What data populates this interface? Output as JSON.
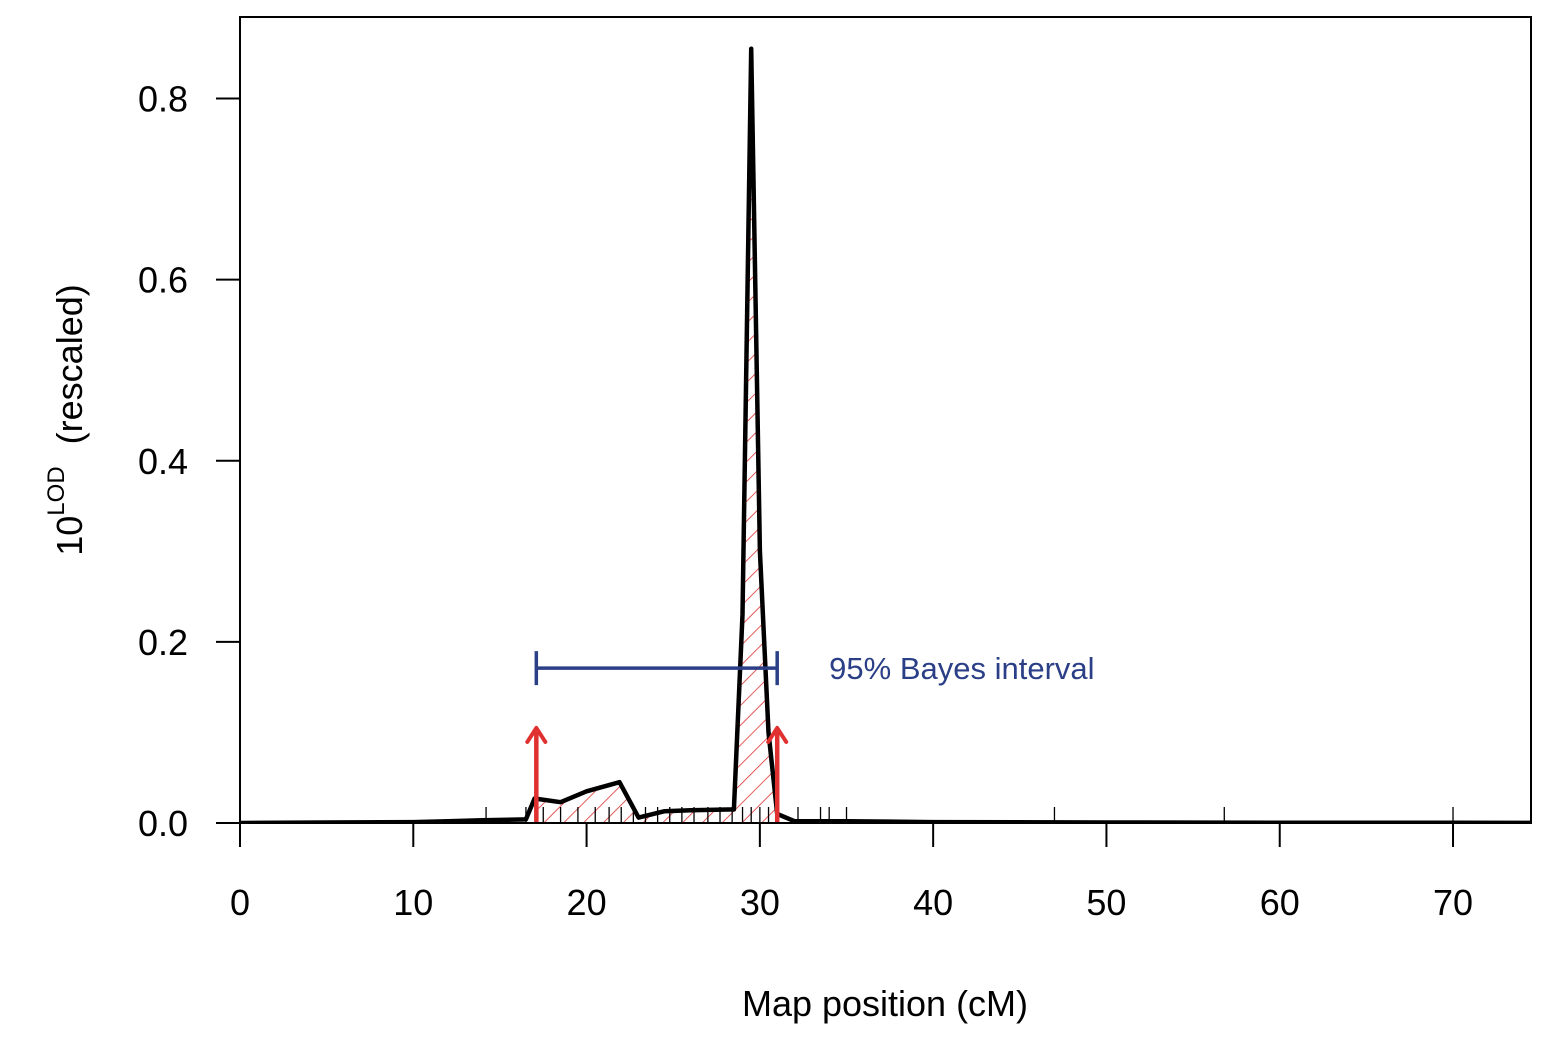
{
  "chart_data": {
    "type": "line",
    "title": "",
    "xlabel": "Map position (cM)",
    "ylabel_base": "10",
    "ylabel_sup": "LOD",
    "ylabel_suffix": "(rescaled)",
    "xlim": [
      0,
      74.5
    ],
    "ylim": [
      0,
      0.89
    ],
    "xticks": [
      0,
      10,
      20,
      30,
      40,
      50,
      60,
      70
    ],
    "xtick_labels": [
      "0",
      "10",
      "20",
      "30",
      "40",
      "50",
      "60",
      "70"
    ],
    "yticks": [
      0,
      0.2,
      0.4,
      0.6,
      0.8
    ],
    "ytick_labels": [
      "0.0",
      "0.2",
      "0.4",
      "0.6",
      "0.8"
    ],
    "series": [
      {
        "x": [
          0,
          5,
          10,
          12,
          14,
          16.5,
          17,
          18.5,
          20,
          21.9,
          23,
          24.5,
          26,
          28.5,
          29,
          29.5,
          30,
          30.5,
          31,
          32,
          35,
          40,
          50,
          60,
          70,
          74.5
        ],
        "y": [
          0,
          0.0005,
          0.001,
          0.002,
          0.003,
          0.004,
          0.027,
          0.023,
          0.035,
          0.045,
          0.006,
          0.013,
          0.014,
          0.015,
          0.23,
          0.855,
          0.3,
          0.1,
          0.01,
          0.002,
          0.002,
          0.001,
          0.0005,
          0.0003,
          0.0002,
          0.0001
        ]
      }
    ],
    "marker_positions": [
      14.2,
      16.5,
      17.5,
      18.5,
      19.5,
      20.5,
      21.3,
      22,
      22.7,
      23.4,
      24.1,
      24.8,
      25.5,
      26.2,
      27,
      27.7,
      28.4,
      29,
      29.5,
      30,
      30.5,
      31,
      32.2,
      33.5,
      34,
      35,
      47,
      56.8,
      70
    ],
    "bayes_interval": {
      "lower": 17.1,
      "upper": 31.0,
      "y": 0.171,
      "label": "95% Bayes interval",
      "label_x": 34,
      "color": "#2b3f87"
    },
    "interval_arrows": {
      "positions": [
        17.1,
        31.0
      ],
      "y_top": 0.105,
      "color": "#e03030"
    },
    "hatch_color": "#e03030",
    "line_color": "#000000"
  }
}
